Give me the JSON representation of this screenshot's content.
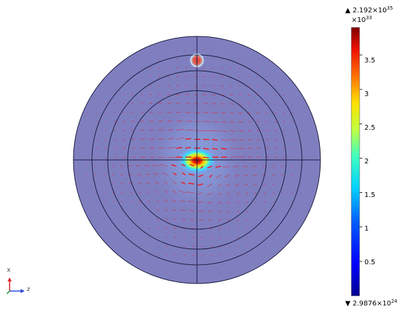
{
  "colorbar": {
    "max_prefix": "▲ 2.192×10",
    "max_exp": "35",
    "multiplier_base": "×10",
    "multiplier_exp": "33",
    "min_prefix": "▼ 2.9876×10",
    "min_exp": "24",
    "ticks": [
      "3.5",
      "3",
      "2.5",
      "2",
      "1.5",
      "1",
      "0.5"
    ],
    "tick_values": [
      3.5,
      3,
      2.5,
      2,
      1.5,
      1,
      0.5
    ],
    "range": [
      0,
      3.9
    ]
  },
  "axes": {
    "vertical_label": "x",
    "horizontal_label": "z",
    "colors": {
      "x": "#e0282c",
      "z": "#2a4bd7",
      "y": "#2aa84a"
    }
  },
  "plot": {
    "domain_color": "#7f7fc0",
    "arrow_color": "#e8202a",
    "edge_color": "#1b1b40"
  }
}
